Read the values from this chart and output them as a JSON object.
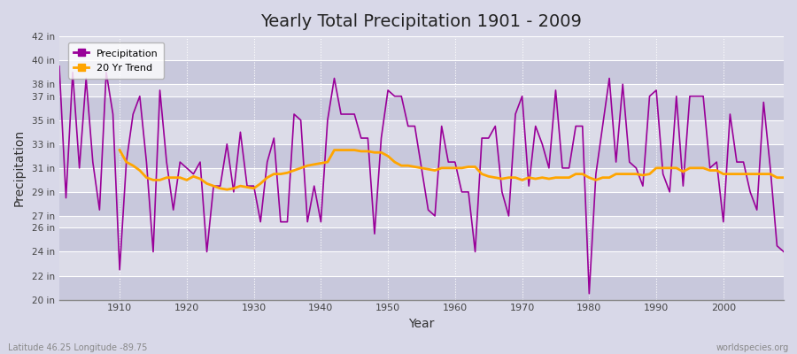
{
  "title": "Yearly Total Precipitation 1901 - 2009",
  "xlabel": "Year",
  "ylabel": "Precipitation",
  "years": [
    1901,
    1902,
    1903,
    1904,
    1905,
    1906,
    1907,
    1908,
    1909,
    1910,
    1911,
    1912,
    1913,
    1914,
    1915,
    1916,
    1917,
    1918,
    1919,
    1920,
    1921,
    1922,
    1923,
    1924,
    1925,
    1926,
    1927,
    1928,
    1929,
    1930,
    1931,
    1932,
    1933,
    1934,
    1935,
    1936,
    1937,
    1938,
    1939,
    1940,
    1941,
    1942,
    1943,
    1944,
    1945,
    1946,
    1947,
    1948,
    1949,
    1950,
    1951,
    1952,
    1953,
    1954,
    1955,
    1956,
    1957,
    1958,
    1959,
    1960,
    1961,
    1962,
    1963,
    1964,
    1965,
    1966,
    1967,
    1968,
    1969,
    1970,
    1971,
    1972,
    1973,
    1974,
    1975,
    1976,
    1977,
    1978,
    1979,
    1980,
    1981,
    1982,
    1983,
    1984,
    1985,
    1986,
    1987,
    1988,
    1989,
    1990,
    1991,
    1992,
    1993,
    1994,
    1995,
    1996,
    1997,
    1998,
    1999,
    2000,
    2001,
    2002,
    2003,
    2004,
    2005,
    2006,
    2007,
    2008,
    2009
  ],
  "precip": [
    39.5,
    28.5,
    39.0,
    31.0,
    38.5,
    31.5,
    27.5,
    39.0,
    35.5,
    22.5,
    31.5,
    35.5,
    37.0,
    31.5,
    24.0,
    37.5,
    31.5,
    27.5,
    31.5,
    31.0,
    30.5,
    31.5,
    24.0,
    29.5,
    29.5,
    33.0,
    29.0,
    34.0,
    29.5,
    29.5,
    26.5,
    31.5,
    33.5,
    26.5,
    26.5,
    35.5,
    35.0,
    26.5,
    29.5,
    26.5,
    35.0,
    38.5,
    35.5,
    35.5,
    35.5,
    33.5,
    33.5,
    25.5,
    33.5,
    37.5,
    37.0,
    37.0,
    34.5,
    34.5,
    31.0,
    27.5,
    27.0,
    34.5,
    31.5,
    31.5,
    29.0,
    29.0,
    24.0,
    33.5,
    33.5,
    34.5,
    29.0,
    27.0,
    35.5,
    37.0,
    29.5,
    34.5,
    33.0,
    31.0,
    37.5,
    31.0,
    31.0,
    34.5,
    34.5,
    20.5,
    30.5,
    34.5,
    38.5,
    31.5,
    38.0,
    31.5,
    31.0,
    29.5,
    37.0,
    37.5,
    30.5,
    29.0,
    37.0,
    29.5,
    37.0,
    37.0,
    37.0,
    31.0,
    31.5,
    26.5,
    35.5,
    31.5,
    31.5,
    29.0,
    27.5,
    36.5,
    31.0,
    24.5,
    24.0
  ],
  "trend_years": [
    1910,
    1911,
    1912,
    1913,
    1914,
    1915,
    1916,
    1917,
    1918,
    1919,
    1920,
    1921,
    1922,
    1923,
    1924,
    1925,
    1926,
    1927,
    1928,
    1929,
    1930,
    1931,
    1932,
    1933,
    1934,
    1935,
    1936,
    1937,
    1938,
    1939,
    1940,
    1941,
    1942,
    1943,
    1944,
    1945,
    1946,
    1947,
    1948,
    1949,
    1950,
    1951,
    1952,
    1953,
    1954,
    1955,
    1956,
    1957,
    1958,
    1959,
    1960,
    1961,
    1962,
    1963,
    1964,
    1965,
    1966,
    1967,
    1968,
    1969,
    1970,
    1971,
    1972,
    1973,
    1974,
    1975,
    1976,
    1977,
    1978,
    1979,
    1980,
    1981,
    1982,
    1983,
    1984,
    1985,
    1986,
    1987,
    1988,
    1989,
    1990,
    1991,
    1992,
    1993,
    1994,
    1995,
    1996,
    1997,
    1998,
    1999,
    2000,
    2001,
    2002,
    2003,
    2004,
    2005,
    2006,
    2007,
    2008,
    2009
  ],
  "trend": [
    32.5,
    31.5,
    31.2,
    30.8,
    30.2,
    30.0,
    30.0,
    30.2,
    30.2,
    30.2,
    30.0,
    30.3,
    30.1,
    29.7,
    29.5,
    29.3,
    29.2,
    29.3,
    29.5,
    29.4,
    29.3,
    29.7,
    30.2,
    30.5,
    30.5,
    30.6,
    30.8,
    31.0,
    31.2,
    31.3,
    31.4,
    31.5,
    32.5,
    32.5,
    32.5,
    32.5,
    32.4,
    32.4,
    32.3,
    32.3,
    32.0,
    31.5,
    31.2,
    31.2,
    31.1,
    31.0,
    30.9,
    30.8,
    31.0,
    31.0,
    31.0,
    31.0,
    31.1,
    31.1,
    30.5,
    30.3,
    30.2,
    30.1,
    30.2,
    30.2,
    30.0,
    30.2,
    30.1,
    30.2,
    30.1,
    30.2,
    30.2,
    30.2,
    30.5,
    30.5,
    30.2,
    30.0,
    30.2,
    30.2,
    30.5,
    30.5,
    30.5,
    30.5,
    30.4,
    30.5,
    31.0,
    31.0,
    31.0,
    31.0,
    30.7,
    31.0,
    31.0,
    31.0,
    30.8,
    30.8,
    30.5,
    30.5,
    30.5,
    30.5,
    30.5,
    30.5,
    30.5,
    30.5,
    30.2,
    30.2
  ],
  "precip_color": "#990099",
  "trend_color": "#FFA500",
  "bg_outer": "#D8D8E8",
  "bg_plot": "#DCDCE8",
  "bg_alt": "#C8C8DC",
  "grid_line_color": "#FFFFFF",
  "ylim_min": 20,
  "ylim_max": 42,
  "yticks": [
    20,
    22,
    24,
    26,
    27,
    29,
    31,
    33,
    35,
    37,
    38,
    40,
    42
  ],
  "xtick_years": [
    1910,
    1920,
    1930,
    1940,
    1950,
    1960,
    1970,
    1980,
    1990,
    2000
  ],
  "footer_left": "Latitude 46.25 Longitude -89.75",
  "footer_right": "worldspecies.org"
}
